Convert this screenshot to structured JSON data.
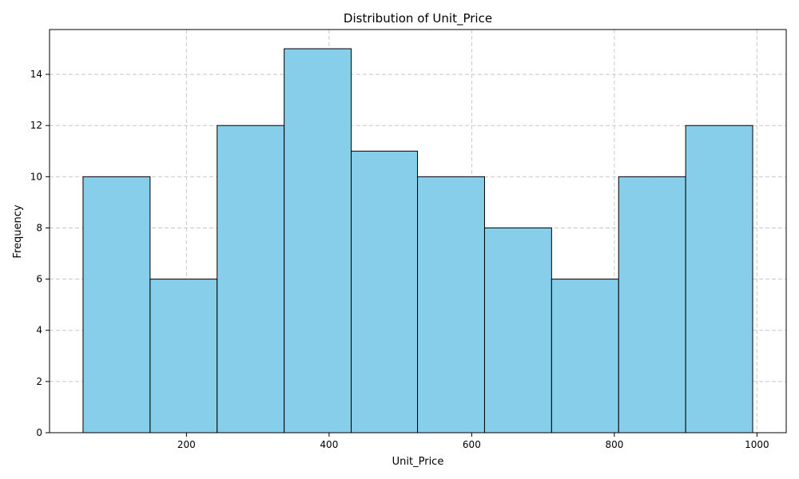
{
  "chart_data": {
    "type": "bar",
    "title": "Distribution of Unit_Price",
    "xlabel": "Unit_Price",
    "ylabel": "Frequency",
    "bins": [
      {
        "start": 55,
        "end": 149,
        "count": 10
      },
      {
        "start": 149,
        "end": 243,
        "count": 6
      },
      {
        "start": 243,
        "end": 337,
        "count": 12
      },
      {
        "start": 337,
        "end": 431,
        "count": 15
      },
      {
        "start": 431,
        "end": 524,
        "count": 11
      },
      {
        "start": 524,
        "end": 618,
        "count": 10
      },
      {
        "start": 618,
        "end": 712,
        "count": 8
      },
      {
        "start": 712,
        "end": 806,
        "count": 6
      },
      {
        "start": 806,
        "end": 900,
        "count": 10
      },
      {
        "start": 900,
        "end": 994,
        "count": 12
      }
    ],
    "xlim": [
      8,
      1041
    ],
    "ylim": [
      0,
      15.75
    ],
    "xticks": [
      200,
      400,
      600,
      800,
      1000
    ],
    "yticks": [
      0,
      2,
      4,
      6,
      8,
      10,
      12,
      14
    ],
    "grid": true,
    "bar_color": "#87ceeb",
    "edge_color": "#000000",
    "grid_color": "#c8c8c8"
  }
}
